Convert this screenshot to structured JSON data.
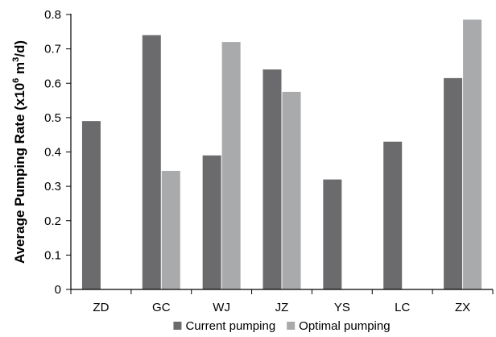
{
  "chart_data": {
    "type": "bar",
    "categories": [
      "ZD",
      "GC",
      "WJ",
      "JZ",
      "YS",
      "LC",
      "ZX"
    ],
    "series": [
      {
        "name": "Current pumping",
        "values": [
          0.49,
          0.74,
          0.39,
          0.64,
          0.32,
          0.43,
          0.615
        ],
        "color": "#6b6b6e"
      },
      {
        "name": "Optimal pumping",
        "values": [
          null,
          0.345,
          0.72,
          0.575,
          null,
          null,
          0.785
        ],
        "color": "#a9aaac"
      }
    ],
    "yticks": [
      "0",
      "0.1",
      "0.2",
      "0.3",
      "0.4",
      "0.5",
      "0.6",
      "0.7",
      "0.8"
    ],
    "ylabel": {
      "prefix": "Average Pumping Rate (x10",
      "sup1": "6",
      "mid": " m",
      "sup2": "3",
      "suffix": "/d)"
    },
    "xlabel": "",
    "title": "",
    "ylim": [
      0,
      0.8
    ],
    "grid": "none",
    "legend_position": "bottom-center"
  }
}
